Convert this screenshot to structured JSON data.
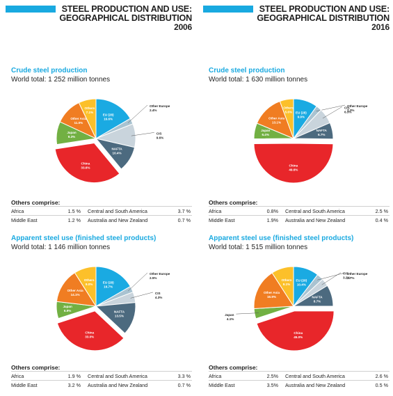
{
  "left": {
    "header": {
      "line1": "STEEL PRODUCTION AND USE:",
      "line2": "GEOGRAPHICAL DISTRIBUTION",
      "year": "2006"
    },
    "sections": [
      {
        "title": "Crude steel production",
        "total": "World total: 1 252 million tonnes",
        "others_title": "Others comprise:",
        "others": [
          {
            "name1": "Africa",
            "val1": "1.5 %",
            "name2": "Central and South America",
            "val2": "3.7 %"
          },
          {
            "name1": "Middle East",
            "val1": "1.2 %",
            "name2": "Australia and New Zealand",
            "val2": "0.7 %"
          }
        ]
      },
      {
        "title": "Apparent steel use (finished steel products)",
        "total": "World total: 1 146 million tonnes",
        "others_title": "Others comprise:",
        "others": [
          {
            "name1": "Africa",
            "val1": "1.9 %",
            "name2": "Central and South America",
            "val2": "3.3 %"
          },
          {
            "name1": "Middle East",
            "val1": "3.2 %",
            "name2": "Australia and New Zealand",
            "val2": "0.7 %"
          }
        ]
      }
    ]
  },
  "right": {
    "header": {
      "line1": "STEEL PRODUCTION AND USE:",
      "line2": "GEOGRAPHICAL DISTRIBUTION",
      "year": "2016"
    },
    "sections": [
      {
        "title": "Crude steel production",
        "total": "World total: 1 630 million tonnes",
        "others_title": "Others comprise:",
        "others": [
          {
            "name1": "Africa",
            "val1": "0.8%",
            "name2": "Central and South America",
            "val2": "2.5 %"
          },
          {
            "name1": "Middle East",
            "val1": "1.9%",
            "name2": "Australia and New Zealand",
            "val2": "0.4 %"
          }
        ]
      },
      {
        "title": "Apparent steel use (finished steel products)",
        "total": "World total: 1 515 million tonnes",
        "others_title": "Others comprise:",
        "others": [
          {
            "name1": "Africa",
            "val1": "2.5%",
            "name2": "Central and South America",
            "val2": "2.6 %"
          },
          {
            "name1": "Middle East",
            "val1": "3.5%",
            "name2": "Australia and New Zealand",
            "val2": "0.5 %"
          }
        ]
      }
    ]
  },
  "colors": {
    "EU (28)": "#1aaae2",
    "Other Europe": "#a9c3d1",
    "CIS": "#c9d4dc",
    "NAFTA": "#4c6a7f",
    "China": "#e8262a",
    "Japan": "#72b043",
    "Other Asia": "#f07d22",
    "Others": "#fcc02a",
    "accent": "#19a9e0"
  },
  "chart_data": [
    {
      "type": "pie",
      "title": "Crude steel production",
      "year": "2006",
      "slices": [
        {
          "label": "EU (28)",
          "value": 16.6,
          "pct": "16.6%"
        },
        {
          "label": "Other Europe",
          "value": 2.4,
          "pct": "2.4%"
        },
        {
          "label": "CIS",
          "value": 9.6,
          "pct": "9.6%"
        },
        {
          "label": "NAFTA",
          "value": 10.4,
          "pct": "10.4%"
        },
        {
          "label": "China",
          "value": 33.6,
          "pct": "33.6%"
        },
        {
          "label": "Japan",
          "value": 9.3,
          "pct": "9.3%"
        },
        {
          "label": "Other Asia",
          "value": 11.0,
          "pct": "11.0%"
        },
        {
          "label": "Others",
          "value": 7.1,
          "pct": "7.1%"
        }
      ]
    },
    {
      "type": "pie",
      "title": "Apparent steel use (finished steel products)",
      "year": "2006",
      "slices": [
        {
          "label": "EU (28)",
          "value": 16.7,
          "pct": "16.7%"
        },
        {
          "label": "Other Europe",
          "value": 2.5,
          "pct": "2.5%"
        },
        {
          "label": "CIS",
          "value": 4.3,
          "pct": "4.3%"
        },
        {
          "label": "NAFTA",
          "value": 13.5,
          "pct": "13.5%"
        },
        {
          "label": "China",
          "value": 33.0,
          "pct": "33.0%"
        },
        {
          "label": "Japan",
          "value": 6.9,
          "pct": "6.9%"
        },
        {
          "label": "Other Asia",
          "value": 14.1,
          "pct": "14.1%"
        },
        {
          "label": "Others",
          "value": 9.0,
          "pct": "9.0%"
        }
      ]
    },
    {
      "type": "pie",
      "title": "Crude steel production",
      "year": "2016",
      "slices": [
        {
          "label": "EU (28)",
          "value": 9.9,
          "pct": "9.9%"
        },
        {
          "label": "Other Europe",
          "value": 2.3,
          "pct": "2.3%"
        },
        {
          "label": "CIS",
          "value": 6.3,
          "pct": "6.3%"
        },
        {
          "label": "NAFTA",
          "value": 6.7,
          "pct": "6.7%"
        },
        {
          "label": "China",
          "value": 49.6,
          "pct": "49.6%"
        },
        {
          "label": "Japan",
          "value": 6.4,
          "pct": "6.4%"
        },
        {
          "label": "Other Asia",
          "value": 13.1,
          "pct": "13.1%"
        },
        {
          "label": "Others",
          "value": 5.6,
          "pct": "5.6%"
        }
      ]
    },
    {
      "type": "pie",
      "title": "Apparent steel use (finished steel products)",
      "year": "2016",
      "slices": [
        {
          "label": "EU (28)",
          "value": 10.4,
          "pct": "10.4%"
        },
        {
          "label": "Other Europe",
          "value": 2.7,
          "pct": "2.7%"
        },
        {
          "label": "CIS",
          "value": 3.2,
          "pct": "3.2%"
        },
        {
          "label": "NAFTA",
          "value": 8.7,
          "pct": "8.7%"
        },
        {
          "label": "China",
          "value": 45.0,
          "pct": "45.0%"
        },
        {
          "label": "Japan",
          "value": 4.1,
          "pct": "4.1%"
        },
        {
          "label": "Other Asia",
          "value": 16.9,
          "pct": "16.9%"
        },
        {
          "label": "Others",
          "value": 9.1,
          "pct": "9.1%"
        }
      ]
    }
  ]
}
